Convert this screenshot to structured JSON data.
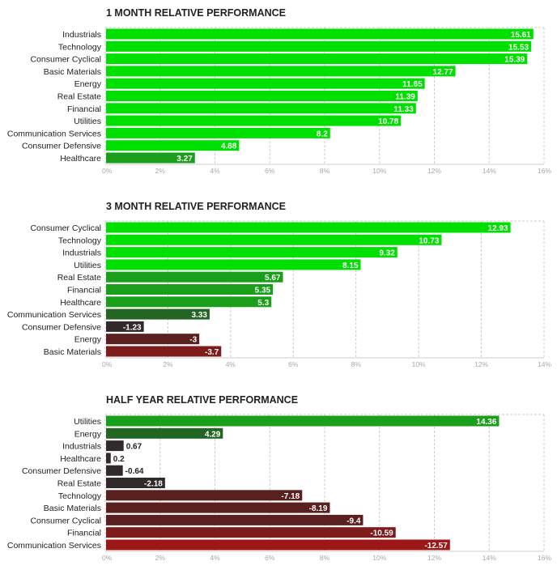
{
  "colors": {
    "strong_positive": "#00e000",
    "positive": "#199f19",
    "weak_positive": "#246524",
    "neutral": "#312a2a",
    "weak_negative": "#5a1f1f",
    "negative": "#7e1c1c",
    "strong_negative": "#9c1818",
    "grid": "#cccccc"
  },
  "chart_data": [
    {
      "type": "bar",
      "orientation": "horizontal",
      "title": "1 MONTH RELATIVE PERFORMANCE",
      "categories": [
        "Industrials",
        "Technology",
        "Consumer Cyclical",
        "Basic Materials",
        "Energy",
        "Real Estate",
        "Financial",
        "Utilities",
        "Communication Services",
        "Consumer Defensive",
        "Healthcare"
      ],
      "values": [
        15.61,
        15.53,
        15.39,
        12.77,
        11.65,
        11.39,
        11.33,
        10.78,
        8.2,
        4.88,
        3.27
      ],
      "value_labels": [
        "15.61",
        "15.53",
        "15.39",
        "12.77",
        "11.65",
        "11.39",
        "11.33",
        "10.78",
        "8.2",
        "4.88",
        "3.27"
      ],
      "xlim": [
        0,
        16
      ],
      "ticks": [
        "0%",
        "2%",
        "4%",
        "6%",
        "8%",
        "10%",
        "12%",
        "14%",
        "16%"
      ],
      "color_keys": [
        "strong_positive",
        "strong_positive",
        "strong_positive",
        "strong_positive",
        "strong_positive",
        "strong_positive",
        "strong_positive",
        "strong_positive",
        "strong_positive",
        "strong_positive",
        "positive"
      ]
    },
    {
      "type": "bar",
      "orientation": "horizontal",
      "title": "3 MONTH RELATIVE PERFORMANCE",
      "categories": [
        "Consumer Cyclical",
        "Technology",
        "Industrials",
        "Utilities",
        "Real Estate",
        "Financial",
        "Healthcare",
        "Communication Services",
        "Consumer Defensive",
        "Energy",
        "Basic Materials"
      ],
      "values": [
        12.93,
        10.73,
        9.32,
        8.15,
        5.67,
        5.35,
        5.3,
        3.33,
        -1.23,
        -3,
        -3.7
      ],
      "value_labels": [
        "12.93",
        "10.73",
        "9.32",
        "8.15",
        "5.67",
        "5.35",
        "5.3",
        "3.33",
        "-1.23",
        "-3",
        "-3.7"
      ],
      "xlim": [
        0,
        14
      ],
      "ticks": [
        "0%",
        "2%",
        "4%",
        "6%",
        "8%",
        "10%",
        "12%",
        "14%"
      ],
      "color_keys": [
        "strong_positive",
        "strong_positive",
        "strong_positive",
        "strong_positive",
        "positive",
        "positive",
        "positive",
        "weak_positive",
        "neutral",
        "weak_negative",
        "negative"
      ]
    },
    {
      "type": "bar",
      "orientation": "horizontal",
      "title": "HALF YEAR RELATIVE PERFORMANCE",
      "categories": [
        "Utilities",
        "Energy",
        "Industrials",
        "Healthcare",
        "Consumer Defensive",
        "Real Estate",
        "Technology",
        "Basic Materials",
        "Consumer Cyclical",
        "Financial",
        "Communication Services"
      ],
      "values": [
        14.36,
        4.29,
        0.67,
        0.2,
        -0.64,
        -2.18,
        -7.18,
        -8.19,
        -9.4,
        -10.59,
        -12.57
      ],
      "value_labels": [
        "14.36",
        "4.29",
        "0.67",
        "0.2",
        "-0.64",
        "-2.18",
        "-7.18",
        "-8.19",
        "-9.4",
        "-10.59",
        "-12.57"
      ],
      "xlim": [
        0,
        16
      ],
      "ticks": [
        "0%",
        "2%",
        "4%",
        "6%",
        "8%",
        "10%",
        "12%",
        "14%",
        "16%"
      ],
      "color_keys": [
        "positive",
        "weak_positive",
        "neutral",
        "neutral",
        "neutral",
        "neutral",
        "weak_negative",
        "weak_negative",
        "weak_negative",
        "negative",
        "strong_negative"
      ]
    }
  ]
}
